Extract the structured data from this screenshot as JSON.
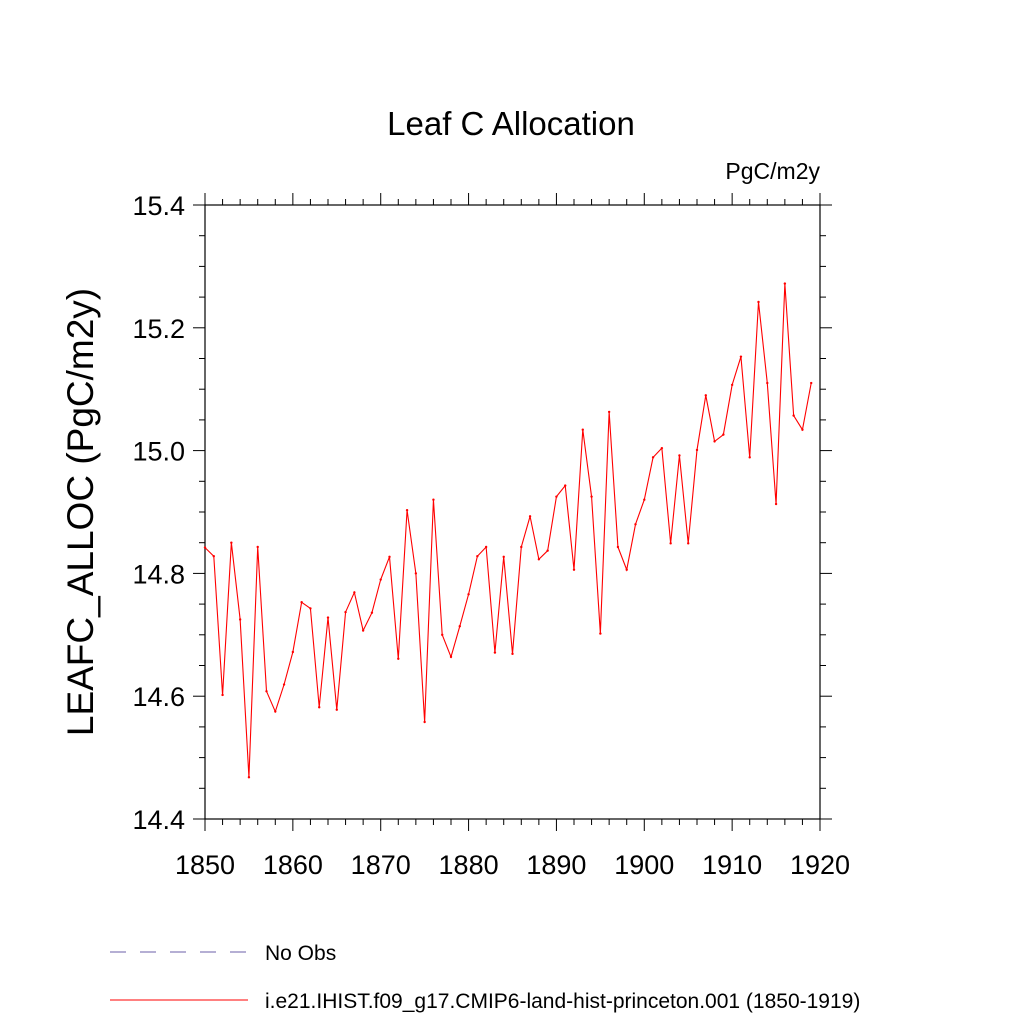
{
  "chart_data": {
    "type": "line",
    "title": "Leaf C Allocation",
    "units_label": "PgC/m2y",
    "xlabel": "",
    "ylabel": "LEAFC_ALLOC  (PgC/m2y)",
    "xlim": [
      1850,
      1920
    ],
    "ylim": [
      14.4,
      15.4
    ],
    "x_ticks": [
      1850,
      1860,
      1870,
      1880,
      1890,
      1900,
      1910,
      1920
    ],
    "x_tick_labels": [
      "1850",
      "1860",
      "1870",
      "1880",
      "1890",
      "1900",
      "1910",
      "1920"
    ],
    "y_ticks": [
      14.4,
      14.6,
      14.8,
      15.0,
      15.2,
      15.4
    ],
    "y_tick_labels": [
      "14.4",
      "14.6",
      "14.8",
      "15.0",
      "15.2",
      "15.4"
    ],
    "grid": false,
    "legend_position": "bottom-left",
    "series": [
      {
        "name": "i.e21.IHIST.f09_g17.CMIP6-land-hist-princeton.001 (1850-1919)",
        "color": "#ff0000",
        "line_style": "solid",
        "x": [
          1850,
          1851,
          1852,
          1853,
          1854,
          1855,
          1856,
          1857,
          1858,
          1859,
          1860,
          1861,
          1862,
          1863,
          1864,
          1865,
          1866,
          1867,
          1868,
          1869,
          1870,
          1871,
          1872,
          1873,
          1874,
          1875,
          1876,
          1877,
          1878,
          1879,
          1880,
          1881,
          1882,
          1883,
          1884,
          1885,
          1886,
          1887,
          1888,
          1889,
          1890,
          1891,
          1892,
          1893,
          1894,
          1895,
          1896,
          1897,
          1898,
          1899,
          1900,
          1901,
          1902,
          1903,
          1904,
          1905,
          1906,
          1907,
          1908,
          1909,
          1910,
          1911,
          1912,
          1913,
          1914,
          1915,
          1916,
          1917,
          1918,
          1919
        ],
        "values": [
          14.842,
          14.828,
          14.602,
          14.85,
          14.725,
          14.468,
          14.843,
          14.608,
          14.575,
          14.619,
          14.672,
          14.753,
          14.743,
          14.582,
          14.728,
          14.578,
          14.737,
          14.769,
          14.707,
          14.736,
          14.79,
          14.827,
          14.661,
          14.903,
          14.8,
          14.558,
          14.92,
          14.7,
          14.664,
          14.714,
          14.766,
          14.828,
          14.843,
          14.671,
          14.827,
          14.669,
          14.843,
          14.893,
          14.823,
          14.837,
          14.925,
          14.943,
          14.806,
          15.034,
          14.925,
          14.702,
          15.063,
          14.843,
          14.806,
          14.88,
          14.92,
          14.989,
          15.004,
          14.849,
          14.992,
          14.849,
          15.001,
          15.09,
          15.015,
          15.026,
          15.107,
          15.153,
          14.989,
          15.242,
          15.11,
          14.913,
          15.272,
          15.057,
          15.034,
          15.11
        ]
      },
      {
        "name": "No Obs",
        "color": "#6b5fa8",
        "line_style": "dashed",
        "x": [],
        "values": []
      }
    ]
  }
}
